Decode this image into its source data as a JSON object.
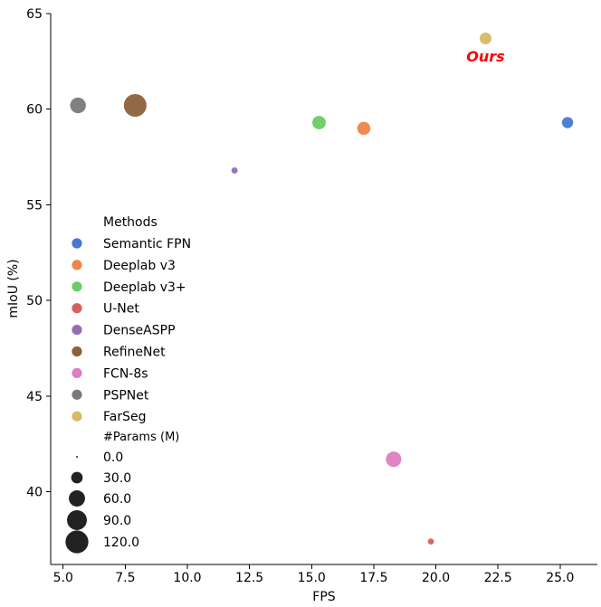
{
  "chart_data": {
    "type": "scatter",
    "xlabel": "FPS",
    "ylabel": "mIoU (%)",
    "xlim": [
      4.5,
      26.5
    ],
    "ylim": [
      36.2,
      65.0
    ],
    "xticks": [
      5.0,
      7.5,
      10.0,
      12.5,
      15.0,
      17.5,
      20.0,
      22.5,
      25.0
    ],
    "xtick_labels": [
      "5.0",
      "7.5",
      "10.0",
      "12.5",
      "15.0",
      "17.5",
      "20.0",
      "22.5",
      "25.0"
    ],
    "yticks": [
      40,
      45,
      50,
      55,
      60,
      65
    ],
    "ytick_labels": [
      "40",
      "45",
      "50",
      "55",
      "60",
      "65"
    ],
    "grid": false,
    "size_encoding": "#Params (M)",
    "series": [
      {
        "name": "Semantic FPN",
        "color": "#4878d0",
        "x": 25.3,
        "y": 59.3,
        "params": 28.5
      },
      {
        "name": "Deeplab v3",
        "color": "#ee854a",
        "x": 17.1,
        "y": 59.0,
        "params": 39.6
      },
      {
        "name": "Deeplab v3+",
        "color": "#6acc64",
        "x": 15.3,
        "y": 59.3,
        "params": 41.4
      },
      {
        "name": "U-Net",
        "color": "#d65f5f",
        "x": 19.8,
        "y": 37.4,
        "params": 7.8
      },
      {
        "name": "DenseASPP",
        "color": "#956cb4",
        "x": 11.9,
        "y": 56.8,
        "params": 8.3
      },
      {
        "name": "RefineNet",
        "color": "#8c613c",
        "x": 7.9,
        "y": 60.2,
        "params": 118.0
      },
      {
        "name": "FCN-8s",
        "color": "#dc7ec0",
        "x": 18.3,
        "y": 41.7,
        "params": 54.3
      },
      {
        "name": "PSPNet",
        "color": "#797979",
        "x": 5.6,
        "y": 60.2,
        "params": 56.3
      },
      {
        "name": "FarSeg",
        "color": "#d5bb67",
        "x": 22.0,
        "y": 63.7,
        "params": 31.4
      }
    ],
    "annotations": [
      {
        "text": "Ours",
        "x": 22.0,
        "y": 62.5,
        "color": "#ff0000"
      }
    ],
    "legend": {
      "placement": "lower-left",
      "title": "Methods",
      "size_title": "#Params (M)",
      "size_entries": [
        {
          "label": "0.0",
          "value": 0.0
        },
        {
          "label": "30.0",
          "value": 30.0
        },
        {
          "label": "60.0",
          "value": 60.0
        },
        {
          "label": "90.0",
          "value": 90.0
        },
        {
          "label": "120.0",
          "value": 120.0
        }
      ],
      "size_color": "#222222"
    }
  }
}
